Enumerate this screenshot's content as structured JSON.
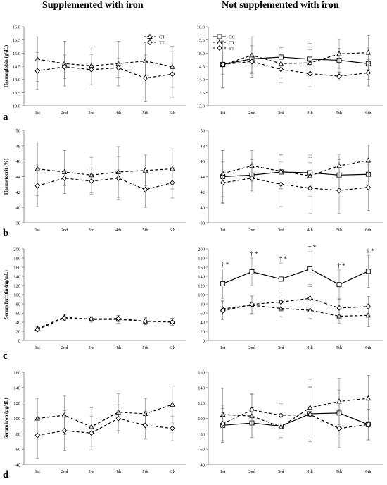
{
  "figure": {
    "left_title": "Supplemented with iron",
    "right_title": "Not supplemented with iron",
    "panel_letters": [
      "a",
      "b",
      "c",
      "d"
    ]
  },
  "chart_data": [
    {
      "type": "line",
      "panel": "a",
      "group": "supplemented",
      "x": [
        "1st",
        "2nd",
        "3rd",
        "4th",
        "5th",
        "6th"
      ],
      "ylabel": "Haemoglobin (g/dL)",
      "ylim": [
        13.0,
        16.0
      ],
      "yticks": [
        "13.0",
        "13.5",
        "14.0",
        "14.5",
        "15.0",
        "15.5",
        "16.0"
      ],
      "legend": "top-right",
      "series": [
        {
          "name": "CT",
          "style": "dashed",
          "marker": "triangle",
          "values": [
            14.77,
            14.6,
            14.52,
            14.6,
            14.7,
            14.48
          ],
          "errors": [
            0.85,
            0.85,
            0.72,
            0.85,
            0.65,
            0.78
          ]
        },
        {
          "name": "TT",
          "style": "dashed",
          "marker": "diamond",
          "values": [
            14.32,
            14.48,
            14.37,
            14.44,
            14.05,
            14.2
          ],
          "errors": [
            0.7,
            0.45,
            0.58,
            0.36,
            0.88,
            0.88
          ]
        }
      ]
    },
    {
      "type": "line",
      "panel": "a",
      "group": "not-supplemented",
      "x": [
        "1st",
        "2nd",
        "3rd",
        "4th",
        "5th",
        "6th"
      ],
      "ylim": [
        13.0,
        16.0
      ],
      "yticks": [
        "13.0",
        "13.5",
        "14.0",
        "14.5",
        "15.0",
        "15.5",
        "16.0"
      ],
      "legend": "top-left",
      "series": [
        {
          "name": "CC",
          "style": "solid",
          "marker": "square",
          "values": [
            14.57,
            14.78,
            14.85,
            14.77,
            14.73,
            14.6
          ],
          "errors": [
            0.88,
            0.5,
            0.35,
            0.6,
            0.45,
            0.6
          ]
        },
        {
          "name": "CT",
          "style": "dashed",
          "marker": "triangle",
          "values": [
            14.55,
            14.92,
            14.6,
            14.63,
            14.97,
            15.02
          ],
          "errors": [
            0.35,
            0.7,
            0.55,
            0.5,
            0.55,
            0.65
          ]
        },
        {
          "name": "TT",
          "style": "dashed",
          "marker": "diamond",
          "values": [
            14.57,
            14.68,
            14.38,
            14.22,
            14.12,
            14.25
          ],
          "errors": [
            0.9,
            0.6,
            0.5,
            0.5,
            0.15,
            0.5
          ]
        }
      ]
    },
    {
      "type": "line",
      "panel": "b",
      "group": "supplemented",
      "x": [
        "1st",
        "2nd",
        "3rd",
        "4th",
        "5th",
        "6th"
      ],
      "ylabel": "Haematocrit (%)",
      "ylim": [
        38,
        50
      ],
      "yticks": [
        "38",
        "40",
        "42",
        "44",
        "46",
        "48",
        "50"
      ],
      "series": [
        {
          "name": "CT",
          "style": "dashed",
          "marker": "triangle",
          "values": [
            45.0,
            44.6,
            44.2,
            44.6,
            44.8,
            45.0
          ],
          "errors": [
            3.5,
            2.8,
            2.3,
            3.3,
            2.0,
            2.6
          ]
        },
        {
          "name": "TT",
          "style": "dashed",
          "marker": "diamond",
          "values": [
            42.8,
            43.8,
            43.4,
            43.8,
            42.3,
            43.2
          ],
          "errors": [
            2.7,
            1.0,
            1.7,
            2.8,
            2.3,
            2.0
          ]
        }
      ]
    },
    {
      "type": "line",
      "panel": "b",
      "group": "not-supplemented",
      "x": [
        "1st",
        "2nd",
        "3rd",
        "4th",
        "5th",
        "6th"
      ],
      "ylim": [
        38,
        50
      ],
      "yticks": [
        "38",
        "40",
        "42",
        "44",
        "46",
        "48",
        "50"
      ],
      "series": [
        {
          "name": "CC",
          "style": "solid",
          "marker": "square",
          "values": [
            44.0,
            44.2,
            44.6,
            44.5,
            44.2,
            44.3
          ],
          "errors": [
            3.4,
            2.0,
            2.2,
            2.0,
            2.0,
            2.0
          ]
        },
        {
          "name": "CT",
          "style": "dashed",
          "marker": "triangle",
          "values": [
            44.4,
            45.4,
            44.7,
            44.1,
            45.4,
            46.1
          ],
          "errors": [
            3.0,
            2.0,
            2.2,
            2.7,
            1.5,
            2.0
          ]
        },
        {
          "name": "TT",
          "style": "dashed",
          "marker": "diamond",
          "values": [
            43.2,
            43.8,
            43.0,
            42.5,
            42.2,
            42.6
          ],
          "errors": [
            2.7,
            1.8,
            2.9,
            3.3,
            3.0,
            3.0
          ]
        }
      ]
    },
    {
      "type": "line",
      "panel": "c",
      "group": "supplemented",
      "x": [
        "1st",
        "2nd",
        "3rd",
        "4th",
        "5th",
        "6th"
      ],
      "ylabel": "Serum ferritin (ng/mL)",
      "ylim": [
        0,
        200
      ],
      "yticks": [
        "0",
        "20",
        "40",
        "60",
        "80",
        "100",
        "120",
        "140",
        "160",
        "180",
        "200"
      ],
      "series": [
        {
          "name": "CT",
          "style": "dashed",
          "marker": "triangle",
          "values": [
            26,
            51,
            46,
            46,
            42,
            41
          ],
          "errors": [
            4,
            6,
            6,
            8,
            8,
            8
          ]
        },
        {
          "name": "TT",
          "style": "dashed",
          "marker": "diamond",
          "values": [
            24,
            49,
            47,
            48,
            42,
            40
          ],
          "errors": [
            4,
            5,
            5,
            7,
            7,
            8
          ]
        }
      ]
    },
    {
      "type": "line",
      "panel": "c",
      "group": "not-supplemented",
      "x": [
        "1st",
        "2nd",
        "3rd",
        "4th",
        "5th",
        "6th"
      ],
      "ylim": [
        0,
        200
      ],
      "yticks": [
        "0",
        "20",
        "40",
        "60",
        "80",
        "100",
        "120",
        "140",
        "160",
        "180",
        "200"
      ],
      "annotation_text": "† *",
      "annotated_points": [
        "1st",
        "2nd",
        "3rd",
        "4th",
        "5th",
        "6th"
      ],
      "series": [
        {
          "name": "CC",
          "style": "solid",
          "marker": "square",
          "values": [
            124,
            150,
            134,
            156,
            122,
            151
          ],
          "errors": [
            32,
            30,
            35,
            38,
            32,
            35
          ]
        },
        {
          "name": "CT",
          "style": "dashed",
          "marker": "triangle",
          "values": [
            69,
            77,
            70,
            66,
            53,
            55
          ],
          "errors": [
            18,
            20,
            18,
            18,
            15,
            25
          ]
        },
        {
          "name": "TT",
          "style": "dashed",
          "marker": "diamond",
          "values": [
            65,
            79,
            84,
            92,
            71,
            74
          ],
          "errors": [
            20,
            20,
            20,
            30,
            20,
            22
          ]
        }
      ]
    },
    {
      "type": "line",
      "panel": "d",
      "group": "supplemented",
      "x": [
        "1st",
        "2nd",
        "3rd",
        "4th",
        "5th",
        "6th"
      ],
      "ylabel": "Serum iron (µg/dL)",
      "ylim": [
        40,
        160
      ],
      "yticks": [
        "40",
        "60",
        "80",
        "100",
        "120",
        "140",
        "160"
      ],
      "series": [
        {
          "name": "CT",
          "style": "dashed",
          "marker": "triangle",
          "values": [
            100,
            104,
            89,
            108,
            106,
            118
          ],
          "errors": [
            26,
            25,
            25,
            24,
            20,
            24
          ]
        },
        {
          "name": "TT",
          "style": "dashed",
          "marker": "diamond",
          "values": [
            78,
            84,
            81,
            100,
            91,
            87
          ],
          "errors": [
            30,
            26,
            22,
            20,
            18,
            16
          ]
        }
      ]
    },
    {
      "type": "line",
      "panel": "d",
      "group": "not-supplemented",
      "x": [
        "1st",
        "2nd",
        "3rd",
        "4th",
        "5th",
        "6th"
      ],
      "ylim": [
        40,
        160
      ],
      "yticks": [
        "40",
        "60",
        "80",
        "100",
        "120",
        "140",
        "160"
      ],
      "series": [
        {
          "name": "CC",
          "style": "solid",
          "marker": "square",
          "values": [
            91,
            94,
            90,
            106,
            107,
            92
          ],
          "errors": [
            22,
            20,
            15,
            35,
            30,
            20
          ]
        },
        {
          "name": "CT",
          "style": "dashed",
          "marker": "triangle",
          "values": [
            105,
            103,
            89,
            114,
            122,
            126
          ],
          "errors": [
            34,
            28,
            15,
            37,
            30,
            30
          ]
        },
        {
          "name": "TT",
          "style": "dashed",
          "marker": "diamond",
          "values": [
            93,
            111,
            104,
            105,
            87,
            92
          ],
          "errors": [
            24,
            21,
            15,
            35,
            25,
            20
          ]
        }
      ]
    }
  ]
}
